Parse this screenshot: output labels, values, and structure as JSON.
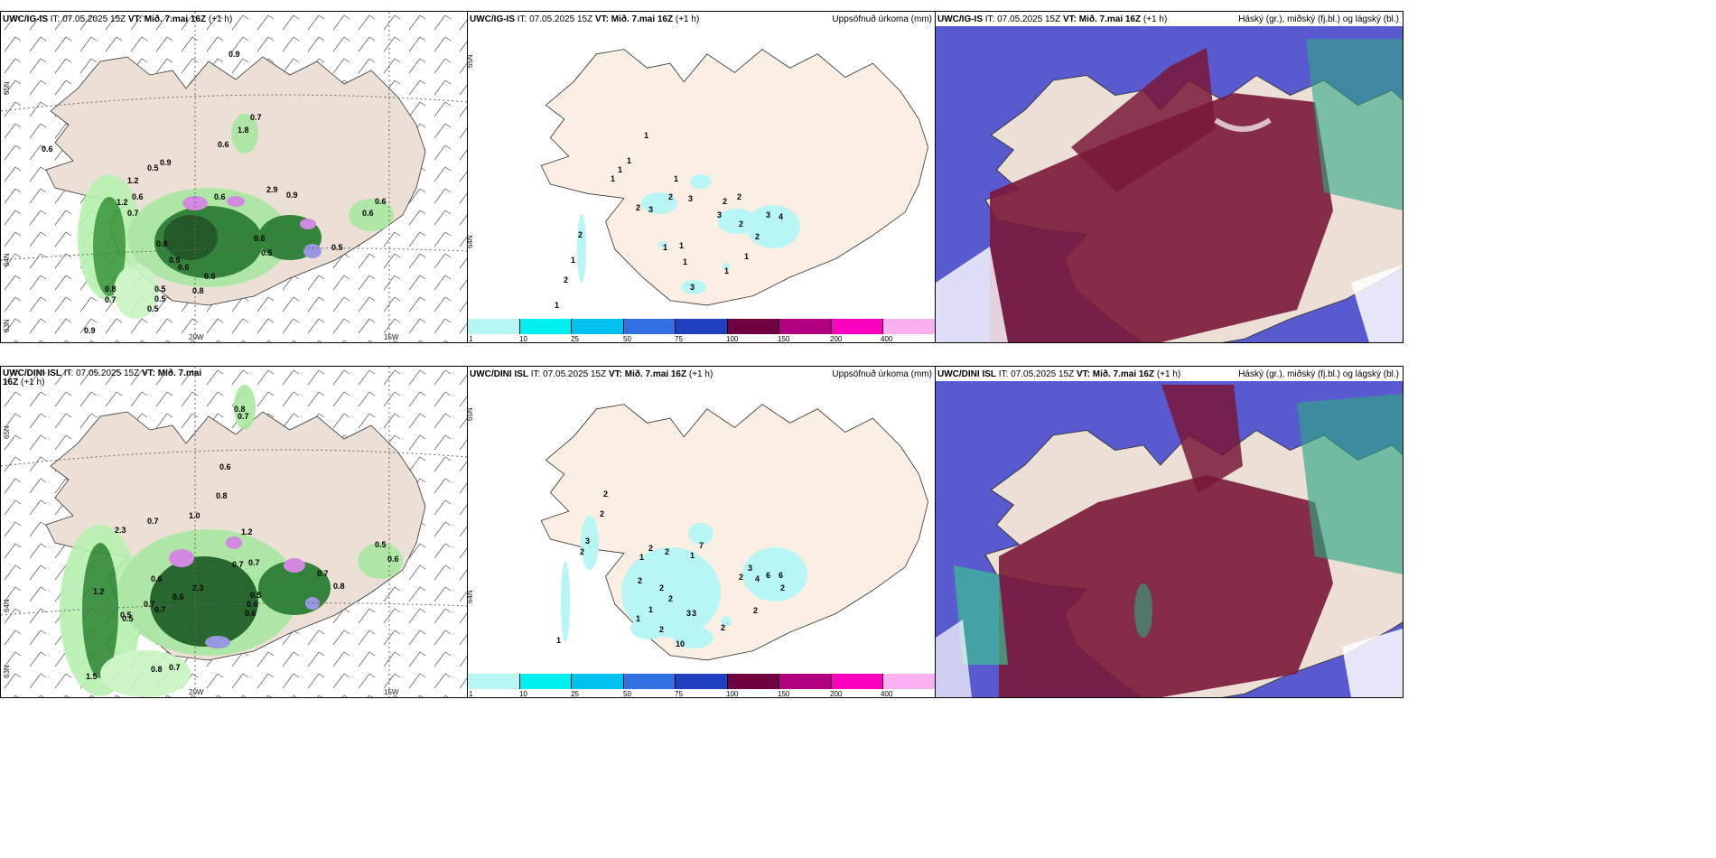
{
  "rows": [
    {
      "model": "UWC/IG-IS",
      "it_label": "IT:",
      "it_value": "07.05.2025 15Z",
      "vt_label": "VT:",
      "vt_value": "Mið. 7.mai 16Z",
      "lead": "(+1 h)",
      "precip_title": "Uppsöfnuð úrkoma (mm)",
      "cloud_title": "Háský (gr.), miðský (fj.bl.) og lágský (bl.)",
      "rain_labels": [
        "0.9",
        "0.6",
        "0.5",
        "0.9",
        "0.7",
        "1.8",
        "0.6",
        "1.2",
        "0.6",
        "1.2",
        "0.7",
        "0.8",
        "0.9",
        "0.6",
        "0.5",
        "0.5",
        "0.9",
        "0.6",
        "0.8",
        "0.7",
        "0.5",
        "0.5",
        "0.6",
        "0.9",
        "2.9",
        "0.6",
        "0.5",
        "0.6",
        "0.6",
        "0.8"
      ],
      "precip_labels": [
        "1",
        "1",
        "1",
        "1",
        "2",
        "3",
        "1",
        "2",
        "3",
        "3",
        "2",
        "2",
        "2",
        "3",
        "4",
        "2",
        "1",
        "1",
        "1",
        "1",
        "2",
        "1",
        "1",
        "2",
        "3",
        "1"
      ]
    },
    {
      "model": "UWC/DINI ISL",
      "it_label": "IT:",
      "it_value": "07.05.2025 15Z",
      "vt_label": "VT:",
      "vt_value": "Mið. 7.mai 16Z",
      "lead": "(+1 h)",
      "precip_title": "Uppsöfnuð úrkoma (mm)",
      "cloud_title": "Háský (gr.), miðský (fj.bl.) og lágský (bl.)",
      "rain_labels": [
        "0.8",
        "0.7",
        "0.6",
        "0.8",
        "1.0",
        "0.7",
        "1.2",
        "0.7",
        "2.3",
        "0.6",
        "0.7",
        "0.5",
        "0.7",
        "0.6",
        "2.3",
        "0.5",
        "0.6",
        "1.2",
        "0.7",
        "0.5",
        "0.6",
        "0.8",
        "0.7",
        "1.5",
        "0.8",
        "0.7",
        "0.5",
        "0.6"
      ],
      "precip_labels": [
        "2",
        "3",
        "2",
        "1",
        "7",
        "1",
        "2",
        "2",
        "2",
        "2",
        "2",
        "3",
        "2",
        "3",
        "4",
        "6",
        "6",
        "2",
        "2",
        "1",
        "1",
        "3",
        "2",
        "10",
        "2",
        "1",
        "2"
      ]
    }
  ],
  "axis": {
    "lat_65": "65N",
    "lat_64": "64N",
    "lat_63": "63N",
    "lon_20": "20W",
    "lon_15": "15W"
  },
  "colorbar": {
    "ticks": [
      "1",
      "10",
      "25",
      "50",
      "75",
      "100",
      "150",
      "200",
      "400"
    ],
    "colors": [
      "#b8f6f6",
      "#00f0f0",
      "#00c0f0",
      "#3070e0",
      "#2040c0",
      "#700040",
      "#b00080",
      "#ff00c0",
      "#f8b0f0"
    ]
  }
}
